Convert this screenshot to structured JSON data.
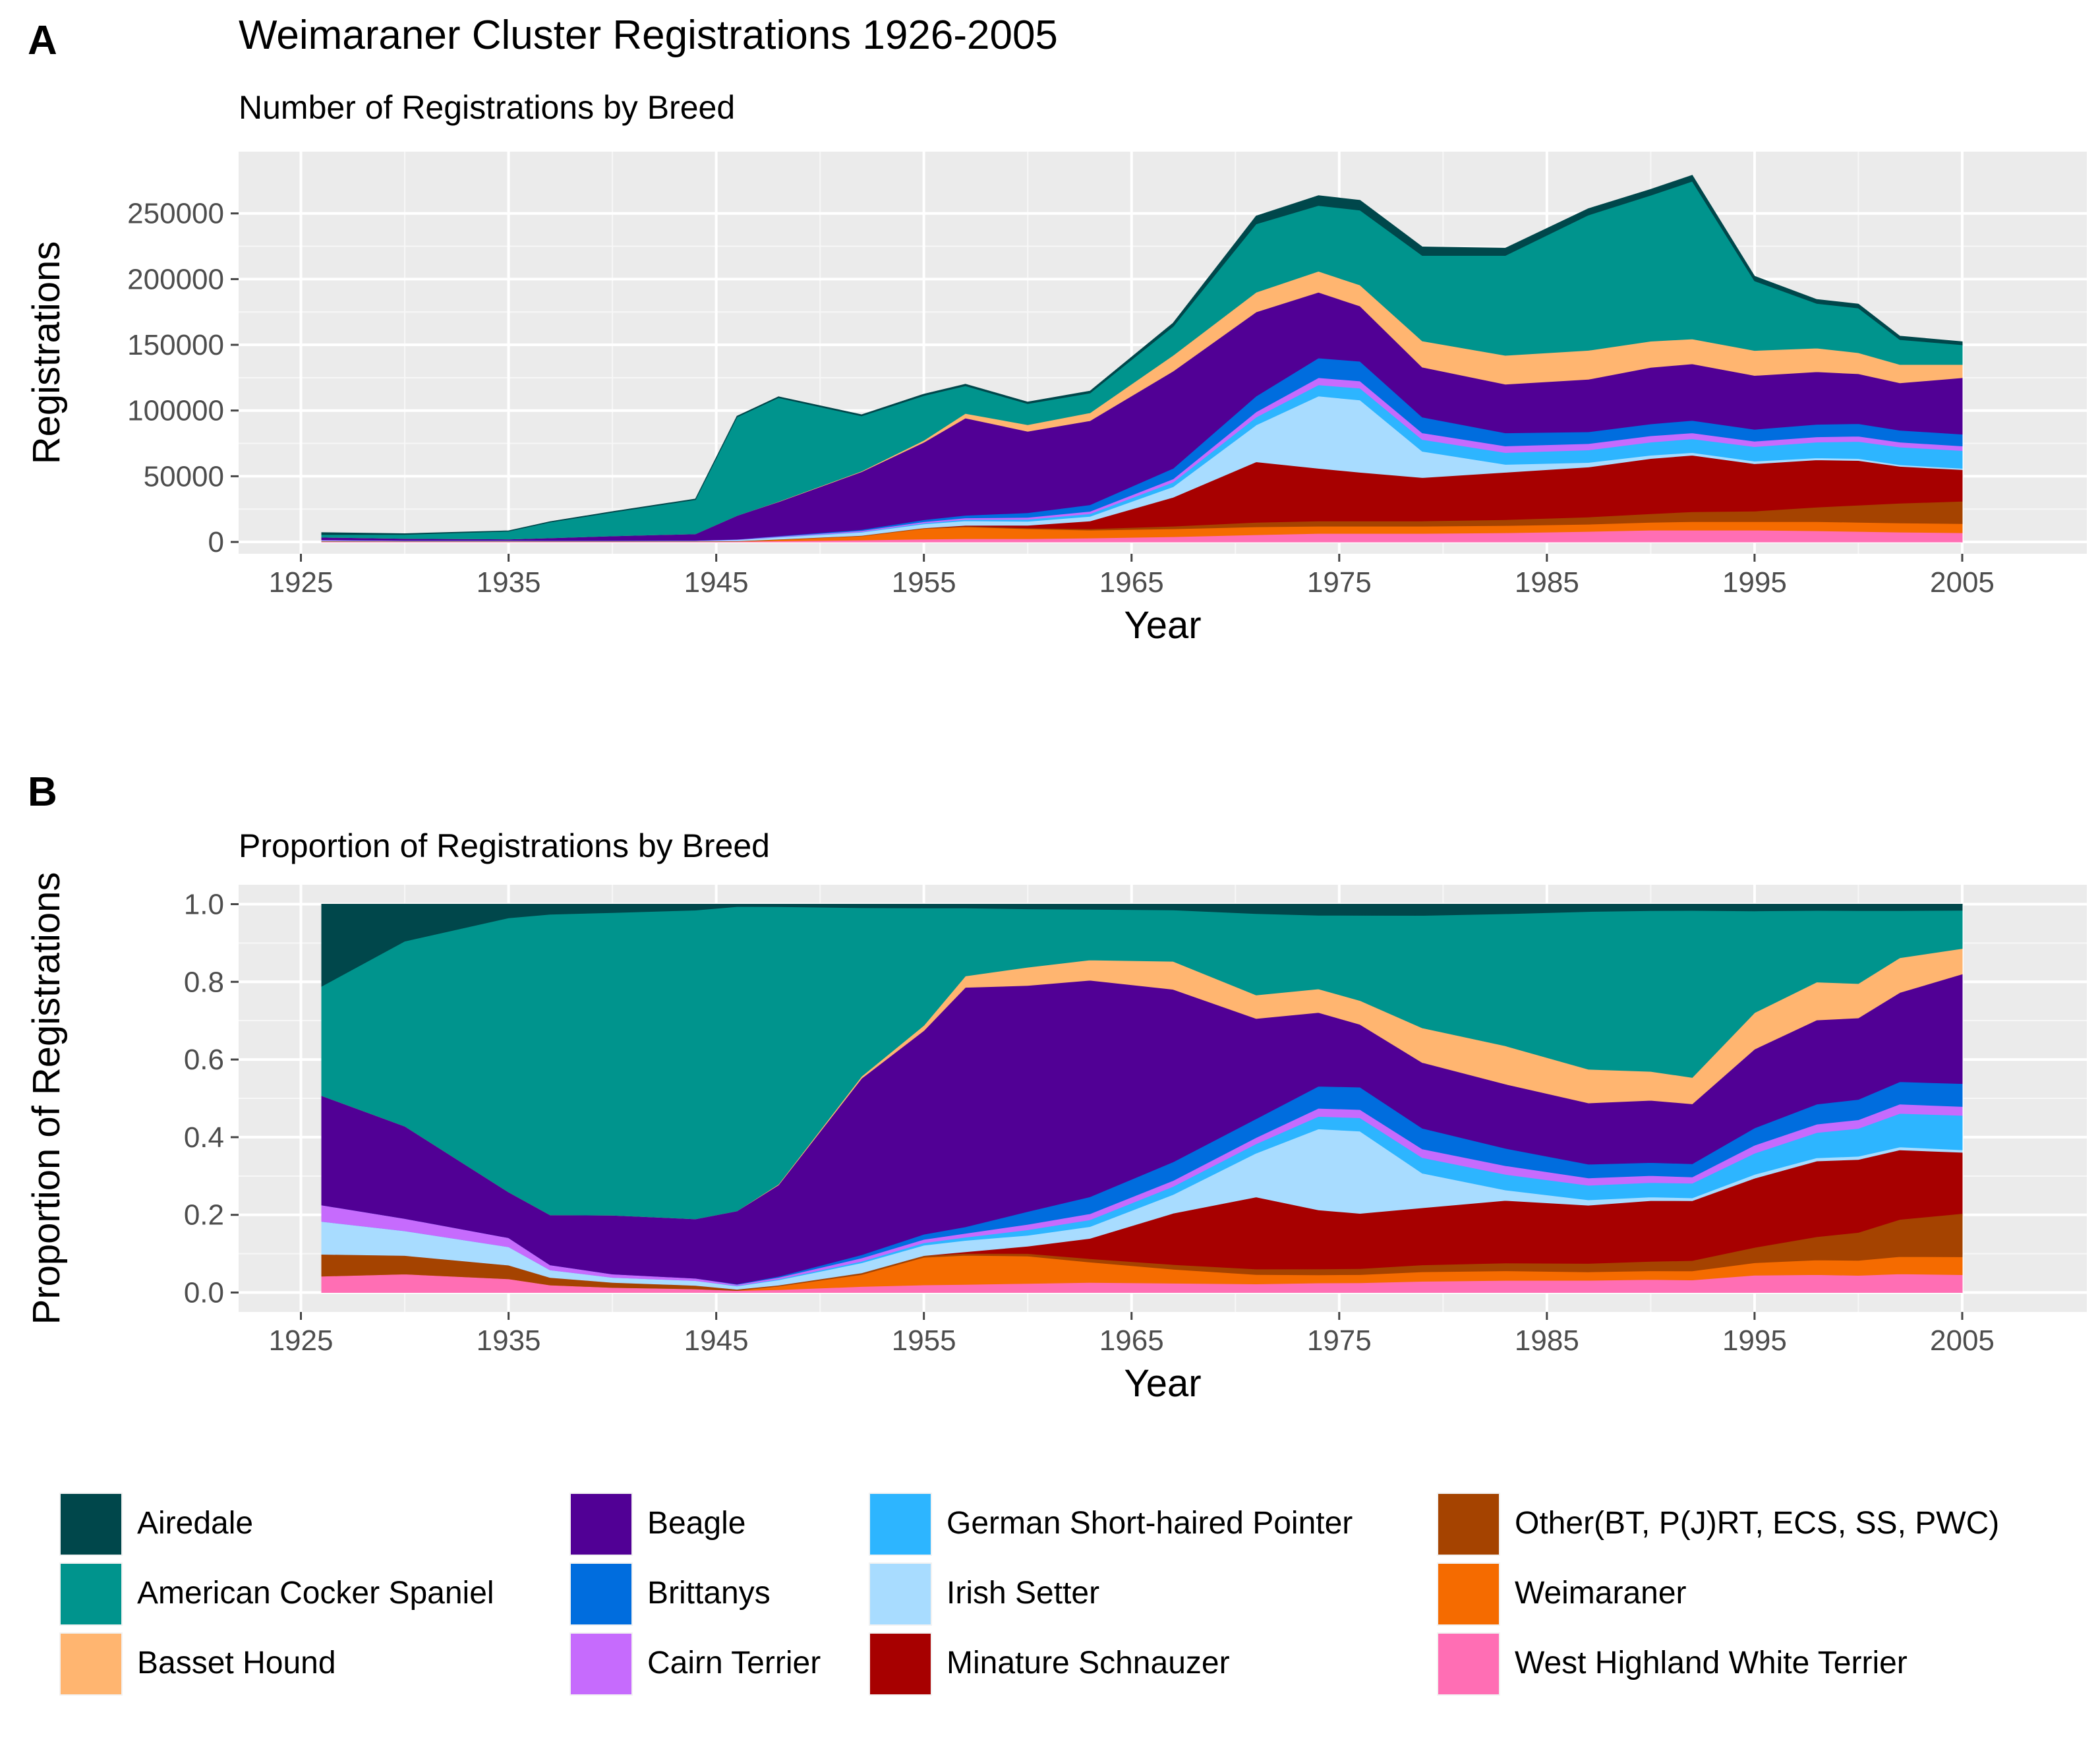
{
  "figure": {
    "title": "Weimaraner Cluster Registrations 1926-2005",
    "panel_a_letter": "A",
    "panel_b_letter": "B"
  },
  "chart_data": [
    {
      "type": "area",
      "stacked": true,
      "subtitle": "Number of Registrations by Breed",
      "xlabel": "Year",
      "ylabel": "Registrations",
      "xlim": [
        1922,
        2011
      ],
      "ylim": [
        -9000,
        297000
      ],
      "xticks": [
        "1925",
        "1935",
        "1945",
        "1955",
        "1965",
        "1975",
        "1985",
        "1995",
        "2005"
      ],
      "yticks": [
        "0",
        "50000",
        "100000",
        "150000",
        "200000",
        "250000"
      ],
      "grid": true,
      "x": [
        1926,
        1930,
        1935,
        1937,
        1940,
        1944,
        1946,
        1948,
        1952,
        1955,
        1957,
        1960,
        1963,
        1967,
        1971,
        1974,
        1976,
        1979,
        1983,
        1987,
        1990,
        1992,
        1995,
        1998,
        2000,
        2002,
        2005
      ],
      "series": [
        {
          "name": "West Highland White Terrier",
          "color": "#ff6eb4",
          "values": [
            300,
            300,
            300,
            300,
            300,
            300,
            500,
            800,
            1500,
            2200,
            2500,
            2500,
            3000,
            4000,
            5500,
            6500,
            6500,
            6500,
            7000,
            8000,
            9000,
            9000,
            9000,
            8500,
            8000,
            7500,
            7000
          ]
        },
        {
          "name": "Weimaraner",
          "color": "#f56b00",
          "values": [
            0,
            0,
            0,
            0,
            0,
            0,
            0,
            1000,
            3000,
            8000,
            9000,
            7500,
            6000,
            6000,
            6000,
            5500,
            5500,
            5500,
            5500,
            5500,
            6000,
            6500,
            6500,
            7000,
            7000,
            7000,
            7000
          ]
        },
        {
          "name": "Other(BT, P(J)RT, ECS, SS, PWC)",
          "color": "#a54300",
          "values": [
            400,
            300,
            300,
            300,
            300,
            300,
            300,
            300,
            400,
            500,
            600,
            700,
            1000,
            2000,
            3500,
            4000,
            4000,
            4000,
            4500,
            5500,
            6500,
            7500,
            8000,
            11000,
            13000,
            15000,
            17000
          ]
        },
        {
          "name": "Minature Schnauzer",
          "color": "#a70000",
          "values": [
            0,
            0,
            0,
            0,
            0,
            0,
            0,
            0,
            0,
            0,
            500,
            2000,
            6000,
            22000,
            46000,
            40000,
            37000,
            33000,
            36000,
            38000,
            42000,
            43000,
            36000,
            36000,
            34000,
            28000,
            24000
          ]
        },
        {
          "name": "Irish Setter",
          "color": "#a8dcff",
          "values": [
            600,
            400,
            400,
            300,
            300,
            400,
            800,
            1500,
            2500,
            3000,
            3500,
            3000,
            3500,
            8000,
            28000,
            55000,
            55000,
            20000,
            6000,
            3500,
            2500,
            2000,
            2000,
            1500,
            1500,
            1200,
            1000
          ]
        },
        {
          "name": "German Short-haired Pointer",
          "color": "#2db5ff",
          "values": [
            0,
            0,
            0,
            0,
            0,
            0,
            100,
            200,
            400,
            700,
            1000,
            1500,
            2000,
            3500,
            6000,
            8500,
            9000,
            9000,
            9000,
            9500,
            10000,
            10500,
            11000,
            12000,
            13000,
            13500,
            13500
          ]
        },
        {
          "name": "Cairn Terrier",
          "color": "#c66bfd",
          "values": [
            300,
            200,
            200,
            200,
            200,
            200,
            300,
            500,
            800,
            1000,
            1200,
            1500,
            1800,
            2500,
            4000,
            5500,
            5500,
            5000,
            5000,
            4800,
            4800,
            4500,
            4200,
            4000,
            4000,
            3800,
            3500
          ]
        },
        {
          "name": "Brittanys",
          "color": "#006dde",
          "values": [
            0,
            0,
            0,
            0,
            0,
            0,
            100,
            300,
            800,
            1500,
            2000,
            3500,
            5000,
            8000,
            12000,
            15000,
            15000,
            12000,
            10000,
            9000,
            9000,
            9500,
            9000,
            9500,
            9500,
            9000,
            9000
          ]
        },
        {
          "name": "Beagle",
          "color": "#510095",
          "values": [
            2000,
            1500,
            1000,
            2000,
            3500,
            5000,
            18000,
            26000,
            44000,
            59000,
            74000,
            62000,
            64000,
            74000,
            64000,
            50000,
            42000,
            38000,
            37000,
            40000,
            43000,
            43000,
            41000,
            40000,
            38000,
            36000,
            43000
          ]
        },
        {
          "name": "Basset Hound",
          "color": "#ffb570",
          "values": [
            0,
            0,
            0,
            0,
            0,
            0,
            0,
            200,
            500,
            1500,
            3500,
            5000,
            6000,
            12000,
            15000,
            16000,
            16000,
            20000,
            22000,
            22000,
            20000,
            19000,
            19000,
            18000,
            16000,
            14000,
            10000
          ]
        },
        {
          "name": "American Cocker Spaniel",
          "color": "#00948d",
          "values": [
            2000,
            3000,
            6000,
            12000,
            18000,
            26000,
            75000,
            79000,
            42000,
            34000,
            21000,
            16000,
            15000,
            22000,
            52000,
            50000,
            57000,
            65000,
            76000,
            103000,
            111000,
            120000,
            53000,
            34000,
            34000,
            19000,
            15000
          ]
        },
        {
          "name": "Airedale",
          "color": "#00474b",
          "values": [
            1500,
            600,
            300,
            400,
            500,
            500,
            600,
            700,
            900,
            1100,
            1200,
            1300,
            1500,
            2500,
            6000,
            7500,
            7500,
            6500,
            5500,
            4800,
            4500,
            4500,
            3500,
            3000,
            3000,
            2600,
            2400
          ]
        }
      ]
    },
    {
      "type": "area",
      "stacked": true,
      "normalized": true,
      "subtitle": "Proportion of Registrations by Breed",
      "xlabel": "Year",
      "ylabel": "Proportion of Registrations",
      "xlim": [
        1922,
        2011
      ],
      "ylim": [
        -0.05,
        1.05
      ],
      "xticks": [
        "1925",
        "1935",
        "1945",
        "1955",
        "1965",
        "1975",
        "1985",
        "1995",
        "2005"
      ],
      "yticks": [
        "0.0",
        "0.2",
        "0.4",
        "0.6",
        "0.8",
        "1.0"
      ],
      "grid": true,
      "legend_position": "bottom"
    }
  ],
  "legend": {
    "items": [
      {
        "label": "Airedale",
        "color": "#00474b"
      },
      {
        "label": "American Cocker Spaniel",
        "color": "#00948d"
      },
      {
        "label": "Basset Hound",
        "color": "#ffb570"
      },
      {
        "label": "Beagle",
        "color": "#510095"
      },
      {
        "label": "Brittanys",
        "color": "#006dde"
      },
      {
        "label": "Cairn Terrier",
        "color": "#c66bfd"
      },
      {
        "label": "German Short-haired Pointer",
        "color": "#2db5ff"
      },
      {
        "label": "Irish Setter",
        "color": "#a8dcff"
      },
      {
        "label": "Minature Schnauzer",
        "color": "#a70000"
      },
      {
        "label": "Other(BT, P(J)RT, ECS, SS, PWC)",
        "color": "#a54300"
      },
      {
        "label": "Weimaraner",
        "color": "#f56b00"
      },
      {
        "label": "West Highland White Terrier",
        "color": "#ff6eb4"
      }
    ]
  }
}
